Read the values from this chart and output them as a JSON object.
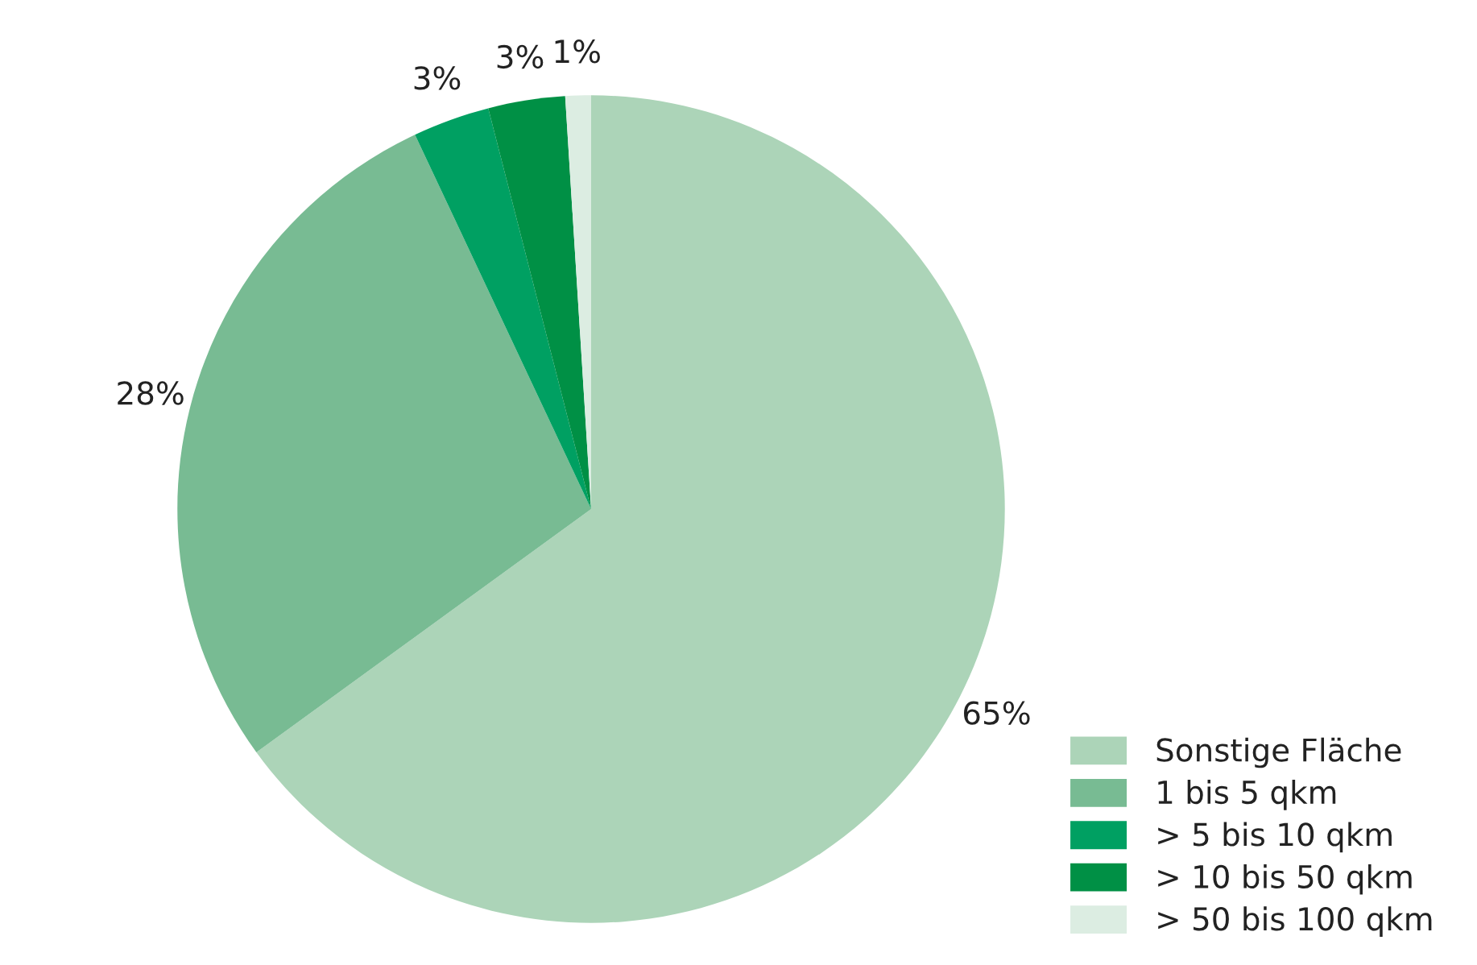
{
  "chart_data": {
    "type": "pie",
    "categories": [
      "Sonstige Fläche",
      "1 bis 5 qkm",
      "> 5 bis 10 qkm",
      "> 10 bis 50 qkm",
      "> 50 bis 100 qkm"
    ],
    "values": [
      65,
      28,
      3,
      3,
      1
    ],
    "colors": [
      "#acd4b8",
      "#78bb93",
      "#00a062",
      "#009045",
      "#dcede2"
    ],
    "value_labels": [
      "65%",
      "28%",
      "3%",
      "3%",
      "1%"
    ],
    "legend": "bottom right"
  }
}
